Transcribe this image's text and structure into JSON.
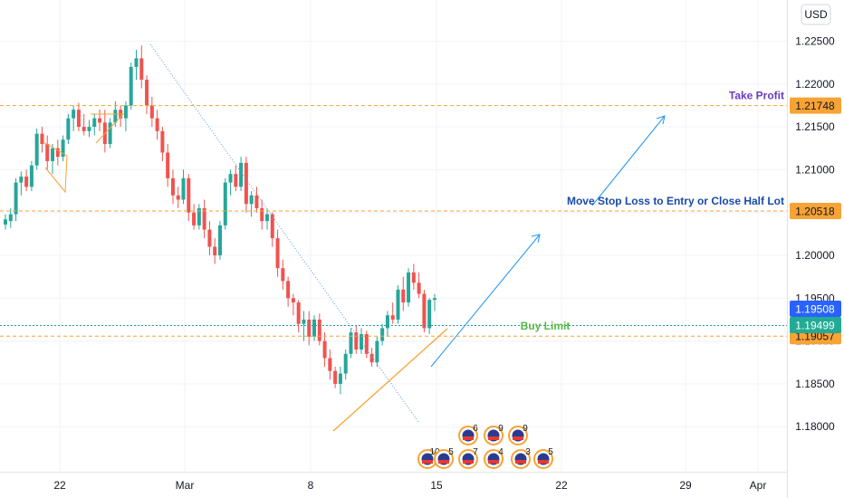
{
  "currency_button": "USD",
  "colors": {
    "up": "#26a69a",
    "down": "#ef5350",
    "level": "#f7a335",
    "arrow": "#2196f3",
    "trend": "#5b9bd5",
    "price_line": "#1e9aa2",
    "take_profit_text": "#6a3bbd",
    "stop_text": "#1a4aa8",
    "buy_text": "#58b947",
    "tag_blue": "#2962ff",
    "tag_green": "#22ab94",
    "tag_orange": "#f7a335"
  },
  "chart_data": {
    "type": "candlestick",
    "symbol_currency": "USD",
    "ylim": [
      1.177,
      1.2285
    ],
    "y_ticks": [
      "1.22500",
      "1.22000",
      "1.21500",
      "1.21000",
      "1.20500",
      "1.20000",
      "1.19500",
      "1.19000",
      "1.18500",
      "1.18000"
    ],
    "x_ticks": [
      "22",
      "Mar",
      "8",
      "15",
      "22",
      "29",
      "Apr"
    ],
    "series": [
      {
        "name": "",
        "values": [
          [
            1.2036,
            1.2048,
            1.203,
            1.2042
          ],
          [
            1.204,
            1.2055,
            1.2032,
            1.2048
          ],
          [
            1.2048,
            1.209,
            1.204,
            1.2085
          ],
          [
            1.2085,
            1.2098,
            1.207,
            1.2092
          ],
          [
            1.2092,
            1.21,
            1.2075,
            1.208
          ],
          [
            1.208,
            1.211,
            1.2075,
            1.2105
          ],
          [
            1.2105,
            1.2148,
            1.21,
            1.2142
          ],
          [
            1.2142,
            1.215,
            1.212,
            1.213
          ],
          [
            1.213,
            1.214,
            1.21,
            1.211
          ],
          [
            1.211,
            1.213,
            1.2095,
            1.2125
          ],
          [
            1.2125,
            1.2135,
            1.2105,
            1.2115
          ],
          [
            1.2115,
            1.214,
            1.211,
            1.2135
          ],
          [
            1.2135,
            1.2165,
            1.213,
            1.216
          ],
          [
            1.216,
            1.2175,
            1.2145,
            1.217
          ],
          [
            1.217,
            1.2178,
            1.2145,
            1.215
          ],
          [
            1.215,
            1.2165,
            1.214,
            1.2145
          ],
          [
            1.2145,
            1.2158,
            1.2138,
            1.215
          ],
          [
            1.215,
            1.2165,
            1.214,
            1.216
          ],
          [
            1.216,
            1.217,
            1.2145,
            1.2155
          ],
          [
            1.2155,
            1.217,
            1.212,
            1.213
          ],
          [
            1.213,
            1.216,
            1.2125,
            1.2155
          ],
          [
            1.2155,
            1.218,
            1.215,
            1.217
          ],
          [
            1.217,
            1.2175,
            1.215,
            1.216
          ],
          [
            1.216,
            1.218,
            1.2145,
            1.2175
          ],
          [
            1.2175,
            1.2225,
            1.217,
            1.222
          ],
          [
            1.222,
            1.224,
            1.2205,
            1.223
          ],
          [
            1.223,
            1.2245,
            1.2195,
            1.2205
          ],
          [
            1.2205,
            1.221,
            1.2165,
            1.2175
          ],
          [
            1.2175,
            1.2185,
            1.215,
            1.216
          ],
          [
            1.216,
            1.217,
            1.2135,
            1.2145
          ],
          [
            1.2145,
            1.215,
            1.211,
            1.212
          ],
          [
            1.212,
            1.213,
            1.208,
            1.209
          ],
          [
            1.209,
            1.21,
            1.206,
            1.207
          ],
          [
            1.207,
            1.208,
            1.2055,
            1.2065
          ],
          [
            1.2065,
            1.21,
            1.206,
            1.209
          ],
          [
            1.209,
            1.2095,
            1.204,
            1.205
          ],
          [
            1.205,
            1.206,
            1.203,
            1.2035
          ],
          [
            1.2035,
            1.206,
            1.203,
            1.2055
          ],
          [
            1.2055,
            1.2065,
            1.202,
            1.203
          ],
          [
            1.203,
            1.204,
            1.2,
            1.201
          ],
          [
            1.201,
            1.202,
            1.199,
            1.2
          ],
          [
            1.2,
            1.204,
            1.1995,
            1.2035
          ],
          [
            1.2035,
            1.209,
            1.203,
            1.2085
          ],
          [
            1.2085,
            1.21,
            1.207,
            1.2095
          ],
          [
            1.2095,
            1.2105,
            1.2075,
            1.208
          ],
          [
            1.208,
            1.2115,
            1.2075,
            1.2108
          ],
          [
            1.2108,
            1.2115,
            1.205,
            1.206
          ],
          [
            1.206,
            1.2075,
            1.2045,
            1.207
          ],
          [
            1.207,
            1.208,
            1.205,
            1.2055
          ],
          [
            1.2055,
            1.2065,
            1.203,
            1.204
          ],
          [
            1.204,
            1.2055,
            1.203,
            1.2048
          ],
          [
            1.2048,
            1.205,
            1.201,
            1.202
          ],
          [
            1.202,
            1.203,
            1.1975,
            1.1985
          ],
          [
            1.1985,
            1.1995,
            1.196,
            1.197
          ],
          [
            1.197,
            1.1975,
            1.194,
            1.195
          ],
          [
            1.195,
            1.1955,
            1.193,
            1.1945
          ],
          [
            1.1945,
            1.1948,
            1.191,
            1.192
          ],
          [
            1.192,
            1.1935,
            1.19,
            1.1925
          ],
          [
            1.1925,
            1.1935,
            1.1895,
            1.1905
          ],
          [
            1.1905,
            1.193,
            1.19,
            1.1925
          ],
          [
            1.1925,
            1.1932,
            1.1895,
            1.19
          ],
          [
            1.19,
            1.191,
            1.187,
            1.188
          ],
          [
            1.188,
            1.189,
            1.1855,
            1.1865
          ],
          [
            1.1865,
            1.187,
            1.1845,
            1.185
          ],
          [
            1.185,
            1.187,
            1.1838,
            1.1862
          ],
          [
            1.1862,
            1.189,
            1.1855,
            1.1885
          ],
          [
            1.1885,
            1.1915,
            1.188,
            1.191
          ],
          [
            1.191,
            1.1918,
            1.1885,
            1.189
          ],
          [
            1.189,
            1.1915,
            1.1885,
            1.1908
          ],
          [
            1.1908,
            1.1912,
            1.188,
            1.1885
          ],
          [
            1.1885,
            1.1892,
            1.187,
            1.1875
          ],
          [
            1.1875,
            1.1905,
            1.187,
            1.19
          ],
          [
            1.19,
            1.192,
            1.1895,
            1.1915
          ],
          [
            1.1915,
            1.1935,
            1.1905,
            1.193
          ],
          [
            1.193,
            1.1945,
            1.192,
            1.1925
          ],
          [
            1.1925,
            1.1965,
            1.192,
            1.196
          ],
          [
            1.196,
            1.1975,
            1.1935,
            1.1945
          ],
          [
            1.1945,
            1.1985,
            1.194,
            1.198
          ],
          [
            1.198,
            1.199,
            1.196,
            1.1968
          ],
          [
            1.1968,
            1.198,
            1.195,
            1.1955
          ],
          [
            1.1955,
            1.196,
            1.191,
            1.1915
          ],
          [
            1.1915,
            1.195,
            1.1908,
            1.1948
          ],
          [
            1.1948,
            1.1955,
            1.1935,
            1.195
          ]
        ]
      }
    ],
    "levels": [
      {
        "label": "Take Profit",
        "value": "1.21748",
        "price": 1.21748
      },
      {
        "label": "Move Stop Loss to Entry or Close Half Lot",
        "value": "1.20518",
        "price": 1.20518
      },
      {
        "label": "Buy Limit",
        "value": "1.19057",
        "price": 1.19057
      }
    ],
    "last_price": "1.19499",
    "cursor_price": "1.19508",
    "event_markers": [
      "10",
      "5",
      "6",
      "9",
      "7",
      "4",
      "9",
      "3",
      "5"
    ]
  }
}
